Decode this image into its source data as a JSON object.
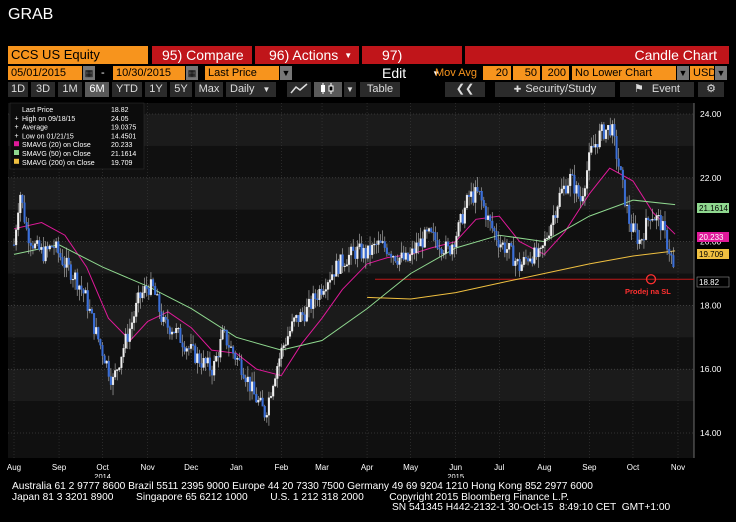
{
  "title": "GRAB",
  "toolbar": {
    "ticker": "CCS US Equity",
    "compare": "95) Compare",
    "actions": "96) Actions",
    "edit": "97) Edit",
    "chart_type": "Candle Chart"
  },
  "controls": {
    "start_date": "05/01/2015",
    "dash": "-",
    "end_date": "10/30/2015",
    "price_type": "Last Price",
    "mov_avg_label": "Mov Avg",
    "ma1": "20",
    "ma2": "50",
    "ma3": "200",
    "lower_chart": "No Lower Chart",
    "currency": "USD"
  },
  "periods": [
    "1D",
    "3D",
    "1M",
    "6M",
    "YTD",
    "1Y",
    "5Y",
    "Max"
  ],
  "active_period": "6M",
  "frequency": "Daily",
  "table_label": "Table",
  "security_study": "Security/Study",
  "event_label": "Event",
  "legend": [
    {
      "label": "Last Price",
      "value": "18.82",
      "color": "#ffffff",
      "marker": "none"
    },
    {
      "label": "High on 09/18/15",
      "value": "24.05",
      "color": "#ffffff",
      "marker": "plus"
    },
    {
      "label": "Average",
      "value": "19.0375",
      "color": "#ffffff",
      "marker": "plus"
    },
    {
      "label": "Low on 01/21/15",
      "value": "14.4501",
      "color": "#ffffff",
      "marker": "plus"
    },
    {
      "label": "SMAVG (20) on Close",
      "value": "20.233",
      "color": "#e0199a",
      "marker": "square"
    },
    {
      "label": "SMAVG (50) on Close",
      "value": "21.1614",
      "color": "#8fd88f",
      "marker": "square"
    },
    {
      "label": "SMAVG (200) on Close",
      "value": "19.709",
      "color": "#f0c040",
      "marker": "square"
    }
  ],
  "annotation": "Prodej na SL",
  "footer": {
    "line1": "Australia 61 2 9777 8600 Brazil 5511 2395 9000 Europe 44 20 7330 7500 Germany 49 69 9204 1210 Hong Kong 852 2977 6000",
    "line2": "Japan 81 3 3201 8900        Singapore 65 6212 1000        U.S. 1 212 318 2000         Copyright 2015 Bloomberg Finance L.P.",
    "line3": "SN 541345 H442-2132-1 30-Oct-15  8:49:10 CET  GMT+1:00"
  },
  "colors": {
    "price": "#3b6fd8",
    "sma20": "#e0199a",
    "sma50": "#8fd88f",
    "sma200": "#f0c040",
    "accent": "#f7941d",
    "button_red": "#c0151a",
    "annotation": "#ff3030"
  },
  "chart_data": {
    "type": "candlestick",
    "ylim": [
      13.5,
      24.5
    ],
    "y_ticks": [
      "24.00",
      "22.00",
      "20.00",
      "18.00",
      "16.00",
      "14.00"
    ],
    "x_labels": [
      {
        "month": "Aug",
        "year": "",
        "date": "2014-08-01"
      },
      {
        "month": "Sep",
        "year": "",
        "date": "2014-09-01"
      },
      {
        "month": "Oct",
        "year": "2014",
        "date": "2014-10-01"
      },
      {
        "month": "Nov",
        "year": "",
        "date": "2014-11-01"
      },
      {
        "month": "Dec",
        "year": "",
        "date": "2014-12-01"
      },
      {
        "month": "Jan",
        "year": "",
        "date": "2015-01-01"
      },
      {
        "month": "Feb",
        "year": "",
        "date": "2015-02-01"
      },
      {
        "month": "Mar",
        "year": "",
        "date": "2015-03-01"
      },
      {
        "month": "Apr",
        "year": "",
        "date": "2015-04-01"
      },
      {
        "month": "May",
        "year": "",
        "date": "2015-05-01"
      },
      {
        "month": "Jun",
        "year": "2015",
        "date": "2015-06-01"
      },
      {
        "month": "Jul",
        "year": "",
        "date": "2015-07-01"
      },
      {
        "month": "Aug",
        "year": "",
        "date": "2015-08-01"
      },
      {
        "month": "Sep",
        "year": "",
        "date": "2015-09-01"
      },
      {
        "month": "Oct",
        "year": "",
        "date": "2015-10-01"
      },
      {
        "month": "Nov",
        "year": "",
        "date": "2015-11-01"
      }
    ],
    "series": [
      {
        "name": "Last Price",
        "points": [
          [
            "2014-08-01",
            19.9
          ],
          [
            "2014-08-05",
            21.6
          ],
          [
            "2014-08-10",
            20.3
          ],
          [
            "2014-08-16",
            19.8
          ],
          [
            "2014-08-22",
            19.6
          ],
          [
            "2014-08-28",
            19.9
          ],
          [
            "2014-09-05",
            19.3
          ],
          [
            "2014-09-12",
            18.9
          ],
          [
            "2014-09-19",
            18.3
          ],
          [
            "2014-09-26",
            17.2
          ],
          [
            "2014-10-03",
            16.3
          ],
          [
            "2014-10-08",
            15.6
          ],
          [
            "2014-10-14",
            16.5
          ],
          [
            "2014-10-20",
            17.3
          ],
          [
            "2014-10-26",
            18.2
          ],
          [
            "2014-11-01",
            18.6
          ],
          [
            "2014-11-05",
            18.5
          ],
          [
            "2014-11-12",
            17.4
          ],
          [
            "2014-11-18",
            17.3
          ],
          [
            "2014-11-25",
            16.9
          ],
          [
            "2014-12-02",
            16.5
          ],
          [
            "2014-12-09",
            16.2
          ],
          [
            "2014-12-16",
            16.0
          ],
          [
            "2014-12-23",
            17.1
          ],
          [
            "2014-12-30",
            16.5
          ],
          [
            "2015-01-06",
            16.0
          ],
          [
            "2015-01-13",
            15.2
          ],
          [
            "2015-01-21",
            14.6
          ],
          [
            "2015-01-27",
            15.8
          ],
          [
            "2015-02-02",
            16.7
          ],
          [
            "2015-02-10",
            17.5
          ],
          [
            "2015-02-18",
            17.8
          ],
          [
            "2015-02-25",
            18.3
          ],
          [
            "2015-03-04",
            18.8
          ],
          [
            "2015-03-11",
            19.2
          ],
          [
            "2015-03-18",
            19.5
          ],
          [
            "2015-03-25",
            19.7
          ],
          [
            "2015-04-01",
            19.6
          ],
          [
            "2015-04-08",
            19.9
          ],
          [
            "2015-04-15",
            19.8
          ],
          [
            "2015-04-22",
            19.5
          ],
          [
            "2015-04-29",
            19.4
          ],
          [
            "2015-05-06",
            19.9
          ],
          [
            "2015-05-13",
            20.2
          ],
          [
            "2015-05-20",
            20.0
          ],
          [
            "2015-05-27",
            19.7
          ],
          [
            "2015-06-03",
            20.4
          ],
          [
            "2015-06-10",
            21.4
          ],
          [
            "2015-06-17",
            21.5
          ],
          [
            "2015-06-24",
            20.6
          ],
          [
            "2015-07-01",
            20.0
          ],
          [
            "2015-07-08",
            19.7
          ],
          [
            "2015-07-15",
            19.2
          ],
          [
            "2015-07-22",
            19.6
          ],
          [
            "2015-07-29",
            19.5
          ],
          [
            "2015-08-05",
            20.5
          ],
          [
            "2015-08-12",
            21.5
          ],
          [
            "2015-08-19",
            22.0
          ],
          [
            "2015-08-26",
            21.3
          ],
          [
            "2015-09-02",
            22.8
          ],
          [
            "2015-09-09",
            23.4
          ],
          [
            "2015-09-16",
            23.6
          ],
          [
            "2015-09-22",
            22.2
          ],
          [
            "2015-09-29",
            20.5
          ],
          [
            "2015-10-06",
            20.0
          ],
          [
            "2015-10-13",
            20.9
          ],
          [
            "2015-10-20",
            20.6
          ],
          [
            "2015-10-27",
            19.6
          ],
          [
            "2015-10-30",
            18.82
          ]
        ]
      },
      {
        "name": "SMAVG (20) on Close",
        "points": [
          [
            "2014-08-01",
            20.4
          ],
          [
            "2014-08-20",
            20.6
          ],
          [
            "2014-09-05",
            20.2
          ],
          [
            "2014-09-20",
            19.2
          ],
          [
            "2014-10-05",
            17.6
          ],
          [
            "2014-10-20",
            16.9
          ],
          [
            "2014-11-01",
            17.5
          ],
          [
            "2014-11-15",
            17.8
          ],
          [
            "2014-12-01",
            17.3
          ],
          [
            "2014-12-15",
            16.6
          ],
          [
            "2015-01-01",
            16.5
          ],
          [
            "2015-01-15",
            16.0
          ],
          [
            "2015-02-01",
            15.8
          ],
          [
            "2015-02-15",
            16.8
          ],
          [
            "2015-03-01",
            17.6
          ],
          [
            "2015-03-15",
            18.5
          ],
          [
            "2015-04-01",
            19.3
          ],
          [
            "2015-04-15",
            19.5
          ],
          [
            "2015-05-01",
            19.6
          ],
          [
            "2015-05-15",
            19.8
          ],
          [
            "2015-06-01",
            20.0
          ],
          [
            "2015-06-15",
            20.7
          ],
          [
            "2015-07-01",
            20.8
          ],
          [
            "2015-07-15",
            20.0
          ],
          [
            "2015-08-01",
            19.6
          ],
          [
            "2015-08-15",
            20.3
          ],
          [
            "2015-09-01",
            21.5
          ],
          [
            "2015-09-15",
            22.3
          ],
          [
            "2015-10-01",
            21.9
          ],
          [
            "2015-10-15",
            20.9
          ],
          [
            "2015-10-30",
            20.233
          ]
        ]
      },
      {
        "name": "SMAVG (50) on Close",
        "points": [
          [
            "2014-08-01",
            19.6
          ],
          [
            "2014-09-01",
            19.9
          ],
          [
            "2014-10-01",
            19.2
          ],
          [
            "2014-11-01",
            18.6
          ],
          [
            "2014-12-01",
            17.9
          ],
          [
            "2015-01-01",
            17.0
          ],
          [
            "2015-02-01",
            16.6
          ],
          [
            "2015-03-01",
            16.9
          ],
          [
            "2015-04-01",
            17.9
          ],
          [
            "2015-05-01",
            19.0
          ],
          [
            "2015-06-01",
            19.8
          ],
          [
            "2015-07-01",
            20.2
          ],
          [
            "2015-08-01",
            20.0
          ],
          [
            "2015-09-01",
            20.8
          ],
          [
            "2015-10-01",
            21.3
          ],
          [
            "2015-10-30",
            21.1614
          ]
        ]
      },
      {
        "name": "SMAVG (200) on Close",
        "points": [
          [
            "2015-04-01",
            18.25
          ],
          [
            "2015-05-01",
            18.2
          ],
          [
            "2015-06-01",
            18.4
          ],
          [
            "2015-07-01",
            18.7
          ],
          [
            "2015-08-01",
            19.0
          ],
          [
            "2015-09-01",
            19.3
          ],
          [
            "2015-10-01",
            19.55
          ],
          [
            "2015-10-30",
            19.709
          ]
        ]
      }
    ],
    "last_price": 18.82,
    "right_labels": [
      {
        "series": "SMAVG (50) on Close",
        "value": "21.1614"
      },
      {
        "series": "SMAVG (20) on Close",
        "value": "20.233"
      },
      {
        "series": "SMAVG (200) on Close",
        "value": "19.709"
      },
      {
        "series": "Last Price",
        "value": "18.82"
      }
    ]
  }
}
